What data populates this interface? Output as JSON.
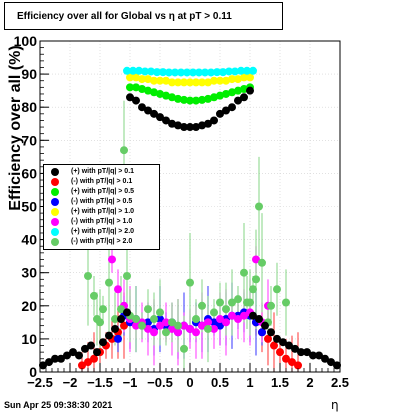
{
  "title": "Efficiency over all for Global vs  η at pT > 0.11",
  "ylabel": "Efficiency over all (%)",
  "xlabel": "η",
  "timestamp": "Sun Apr 25 09:38:30 2021",
  "chart_data": {
    "type": "scatter",
    "title": "Efficiency over all for Global vs  η at pT > 0.11",
    "xlabel": "η",
    "ylabel": "Efficiency over all (%)",
    "xlim": [
      -2.5,
      2.5
    ],
    "ylim": [
      0,
      100
    ],
    "x_ticks": [
      "−2.5",
      "−2",
      "−1.5",
      "−1",
      "−0.5",
      "0",
      "0.5",
      "1",
      "1.5",
      "2",
      "2.5"
    ],
    "y_ticks": [
      "0",
      "10",
      "20",
      "30",
      "40",
      "50",
      "60",
      "70",
      "80",
      "90",
      "100"
    ],
    "grid": true,
    "legend_position": "middle-left",
    "series": [
      {
        "name": "(+) with pT/|q| > 0.1",
        "color": "#000000",
        "x": [
          -2.45,
          -2.35,
          -2.25,
          -2.15,
          -2.05,
          -1.95,
          -1.85,
          -1.75,
          -1.65,
          -1.55,
          -1.45,
          -1.35,
          -1.25,
          -1.15,
          -1.05,
          -1.0,
          -0.9,
          -0.8,
          -0.7,
          -0.6,
          -0.5,
          -0.4,
          -0.3,
          -0.2,
          -0.1,
          0.0,
          0.1,
          0.2,
          0.3,
          0.4,
          0.5,
          0.6,
          0.7,
          0.8,
          0.9,
          1.0,
          1.05,
          1.15,
          1.25,
          1.35,
          1.45,
          1.55,
          1.65,
          1.75,
          1.85,
          1.95,
          2.05,
          2.15,
          2.25,
          2.35,
          2.45
        ],
        "y": [
          2,
          3,
          4,
          4,
          5,
          6,
          5,
          7,
          8,
          6,
          9,
          11,
          13,
          16,
          18,
          83,
          82,
          80,
          79,
          78,
          77,
          76,
          75,
          74.5,
          74,
          74,
          74,
          74.5,
          75,
          76,
          78,
          79,
          80,
          82,
          83,
          85,
          17,
          16,
          14,
          12,
          10,
          9,
          8,
          7,
          6,
          6,
          5,
          5,
          4,
          3,
          2
        ]
      },
      {
        "name": "(−) with pT/|q| > 0.1",
        "color": "#ff0000",
        "x": [
          -1.8,
          -1.7,
          -1.6,
          -1.5,
          -1.4,
          -1.3,
          -1.2,
          -1.1,
          1.1,
          1.2,
          1.3,
          1.4,
          1.5,
          1.6,
          1.7,
          1.8
        ],
        "y": [
          2,
          3,
          4,
          6,
          8,
          10,
          12,
          14,
          15,
          12,
          10,
          8,
          6,
          4,
          3,
          2
        ]
      },
      {
        "name": "(+) with pT/|q| > 0.5",
        "color": "#00ee00",
        "x": [
          -1.0,
          -0.9,
          -0.8,
          -0.7,
          -0.6,
          -0.5,
          -0.4,
          -0.3,
          -0.2,
          -0.1,
          0.0,
          0.1,
          0.2,
          0.3,
          0.4,
          0.5,
          0.6,
          0.7,
          0.8,
          0.9,
          1.0
        ],
        "y": [
          86,
          86,
          85.5,
          85,
          84.5,
          84,
          83.5,
          83,
          82.5,
          82.2,
          82,
          82,
          82.2,
          82.5,
          83,
          83.5,
          84,
          84.5,
          85,
          85.5,
          86
        ]
      },
      {
        "name": "(−) with pT/|q| > 0.5",
        "color": "#0000ff",
        "x": [
          -1.2,
          -1.1,
          -1.0,
          -0.9,
          -0.8,
          -0.7,
          -0.6,
          -0.5,
          -0.4,
          -0.3,
          -0.2,
          -0.1,
          0.0,
          0.1,
          0.2,
          0.3,
          0.4,
          0.5,
          0.6,
          0.7,
          0.8,
          0.9,
          1.0,
          1.1,
          1.2
        ],
        "y": [
          10,
          17,
          15,
          16,
          14,
          15,
          13,
          16,
          14,
          15,
          12,
          14,
          13,
          15,
          14,
          16,
          15,
          14,
          16,
          17,
          17,
          18,
          17,
          15,
          12
        ]
      },
      {
        "name": "(+) with pT/|q| > 1.0",
        "color": "#ffff00",
        "x": [
          -1.0,
          -0.9,
          -0.8,
          -0.7,
          -0.6,
          -0.5,
          -0.4,
          -0.3,
          -0.2,
          -0.1,
          0.0,
          0.1,
          0.2,
          0.3,
          0.4,
          0.5,
          0.6,
          0.7,
          0.8,
          0.9,
          1.0
        ],
        "y": [
          89,
          89,
          88.5,
          88.5,
          88,
          88,
          88,
          87.5,
          87.5,
          87.5,
          87.5,
          87.5,
          87.5,
          87.5,
          88,
          88,
          88,
          88.5,
          88.5,
          89,
          89
        ]
      },
      {
        "name": "(−) with pT/|q| > 1.0",
        "color": "#ff00ff",
        "x": [
          -1.3,
          -1.2,
          -1.1,
          -1.0,
          -0.9,
          -0.8,
          -0.7,
          -0.6,
          -0.5,
          -0.4,
          -0.3,
          -0.2,
          -0.1,
          0.0,
          0.1,
          0.2,
          0.3,
          0.4,
          0.5,
          0.6,
          0.7,
          0.8,
          0.9,
          1.0,
          1.1,
          1.2,
          1.3
        ],
        "y": [
          34,
          25,
          20,
          16,
          14,
          15,
          13,
          12,
          14,
          15,
          13,
          12,
          14,
          13,
          12,
          14,
          15,
          13,
          16,
          15,
          17,
          16,
          17,
          18,
          34,
          15,
          20
        ]
      },
      {
        "name": "(+) with pT/|q| > 2.0",
        "color": "#00ffff",
        "x": [
          -1.05,
          -0.95,
          -0.85,
          -0.75,
          -0.65,
          -0.55,
          -0.45,
          -0.35,
          -0.25,
          -0.15,
          -0.05,
          0.05,
          0.15,
          0.25,
          0.35,
          0.45,
          0.55,
          0.65,
          0.75,
          0.85,
          0.95,
          1.05
        ],
        "y": [
          91,
          91,
          91,
          90.8,
          90.8,
          90.6,
          90.6,
          90.5,
          90.5,
          90.5,
          90.5,
          90.5,
          90.5,
          90.5,
          90.5,
          90.6,
          90.6,
          90.8,
          90.8,
          91,
          91,
          91
        ]
      },
      {
        "name": "(−) with pT/|q| > 2.0",
        "color": "#66cc66",
        "x": [
          -1.7,
          -1.6,
          -1.55,
          -1.5,
          -1.45,
          -1.35,
          -1.25,
          -1.15,
          -1.1,
          -1.05,
          -1.0,
          -0.9,
          -0.8,
          -0.7,
          -0.6,
          -0.5,
          -0.4,
          -0.3,
          -0.2,
          -0.1,
          0.0,
          0.1,
          0.2,
          0.3,
          0.4,
          0.5,
          0.6,
          0.7,
          0.8,
          0.9,
          0.95,
          1.0,
          1.05,
          1.1,
          1.15,
          1.2,
          1.3,
          1.35,
          1.45,
          1.6
        ],
        "y": [
          29,
          23,
          16,
          15,
          19,
          27,
          16,
          19,
          67,
          29,
          17,
          16,
          14,
          19,
          16,
          18,
          12,
          15,
          14,
          7,
          27,
          16,
          20,
          13,
          18,
          21,
          19,
          21,
          22,
          30,
          21,
          21,
          25,
          28,
          50,
          33,
          15,
          20,
          25,
          21
        ]
      }
    ]
  },
  "legend": {
    "entries": [
      {
        "label": "(+) with pT/|q| > 0.1",
        "color": "#000000"
      },
      {
        "label": "(-) with pT/|q| > 0.1",
        "color": "#ff0000"
      },
      {
        "label": "(+) with pT/|q| > 0.5",
        "color": "#00ee00"
      },
      {
        "label": "(-) with pT/|q| > 0.5",
        "color": "#0000ff"
      },
      {
        "label": "(+) with pT/|q| > 1.0",
        "color": "#ffff00"
      },
      {
        "label": "(-) with pT/|q| > 1.0",
        "color": "#ff00ff"
      },
      {
        "label": "(+) with pT/|q| > 2.0",
        "color": "#00ffff"
      },
      {
        "label": "(-) with pT/|q| > 2.0",
        "color": "#66cc66"
      }
    ]
  }
}
